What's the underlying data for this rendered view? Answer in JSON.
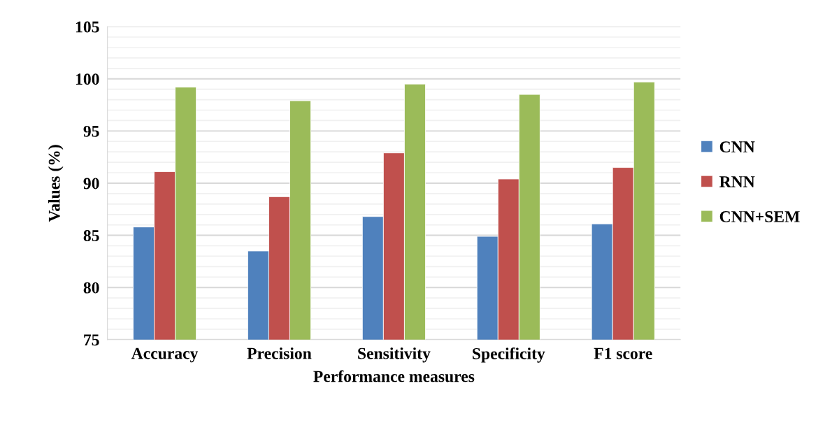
{
  "chart_data": {
    "type": "bar",
    "xlabel": "Performance measures",
    "ylabel": "Values (%)",
    "categories": [
      "Accuracy",
      "Precision",
      "Sensitivity",
      "Specificity",
      "F1 score"
    ],
    "series": [
      {
        "name": "CNN",
        "color": "#4f81bd",
        "values": [
          85.8,
          83.5,
          86.8,
          84.9,
          86.1
        ]
      },
      {
        "name": "RNN",
        "color": "#c0504d",
        "values": [
          91.1,
          88.7,
          92.9,
          90.4,
          91.5
        ]
      },
      {
        "name": "CNN+SEM",
        "color": "#9bbb59",
        "values": [
          99.2,
          97.9,
          99.5,
          98.5,
          99.7
        ]
      }
    ],
    "ylim": [
      75,
      105
    ],
    "yticks": [
      75,
      80,
      85,
      90,
      95,
      100,
      105
    ],
    "grid": "y",
    "legend": "right"
  }
}
